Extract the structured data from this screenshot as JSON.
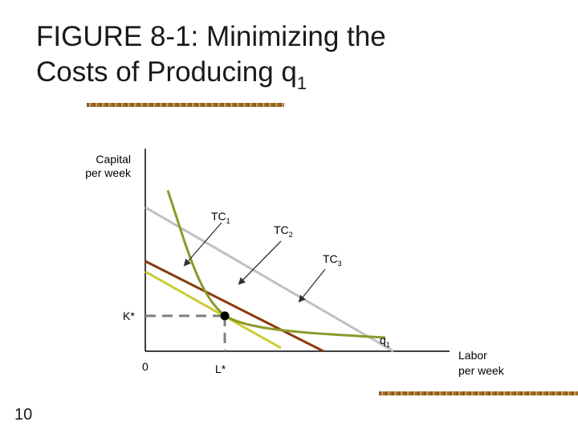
{
  "title": {
    "line1": "FIGURE 8-1: Minimizing the",
    "line2_main": "Costs of Producing q",
    "line2_sub": "1"
  },
  "page_number": "10",
  "diagram": {
    "y_axis_label_line1": "Capital",
    "y_axis_label_line2": "per week",
    "x_axis_label_line1": "Labor",
    "x_axis_label_line2": "per week",
    "origin_label": "0",
    "k_star_label": "K*",
    "l_star_label": "L*",
    "isocost_labels": [
      {
        "main": "TC",
        "sub": "1"
      },
      {
        "main": "TC",
        "sub": "2"
      },
      {
        "main": "TC",
        "sub": "3"
      }
    ],
    "isoquant_label": {
      "main": "q",
      "sub": "1"
    },
    "colors": {
      "axis": "#000000",
      "tc1": "#cccc33",
      "tc2": "#8b3a0f",
      "tc3": "#c0c0c0",
      "isoquant": "#8c9a2a",
      "dashed_guides": "#7f7f7f",
      "arrows": "#333333"
    }
  }
}
